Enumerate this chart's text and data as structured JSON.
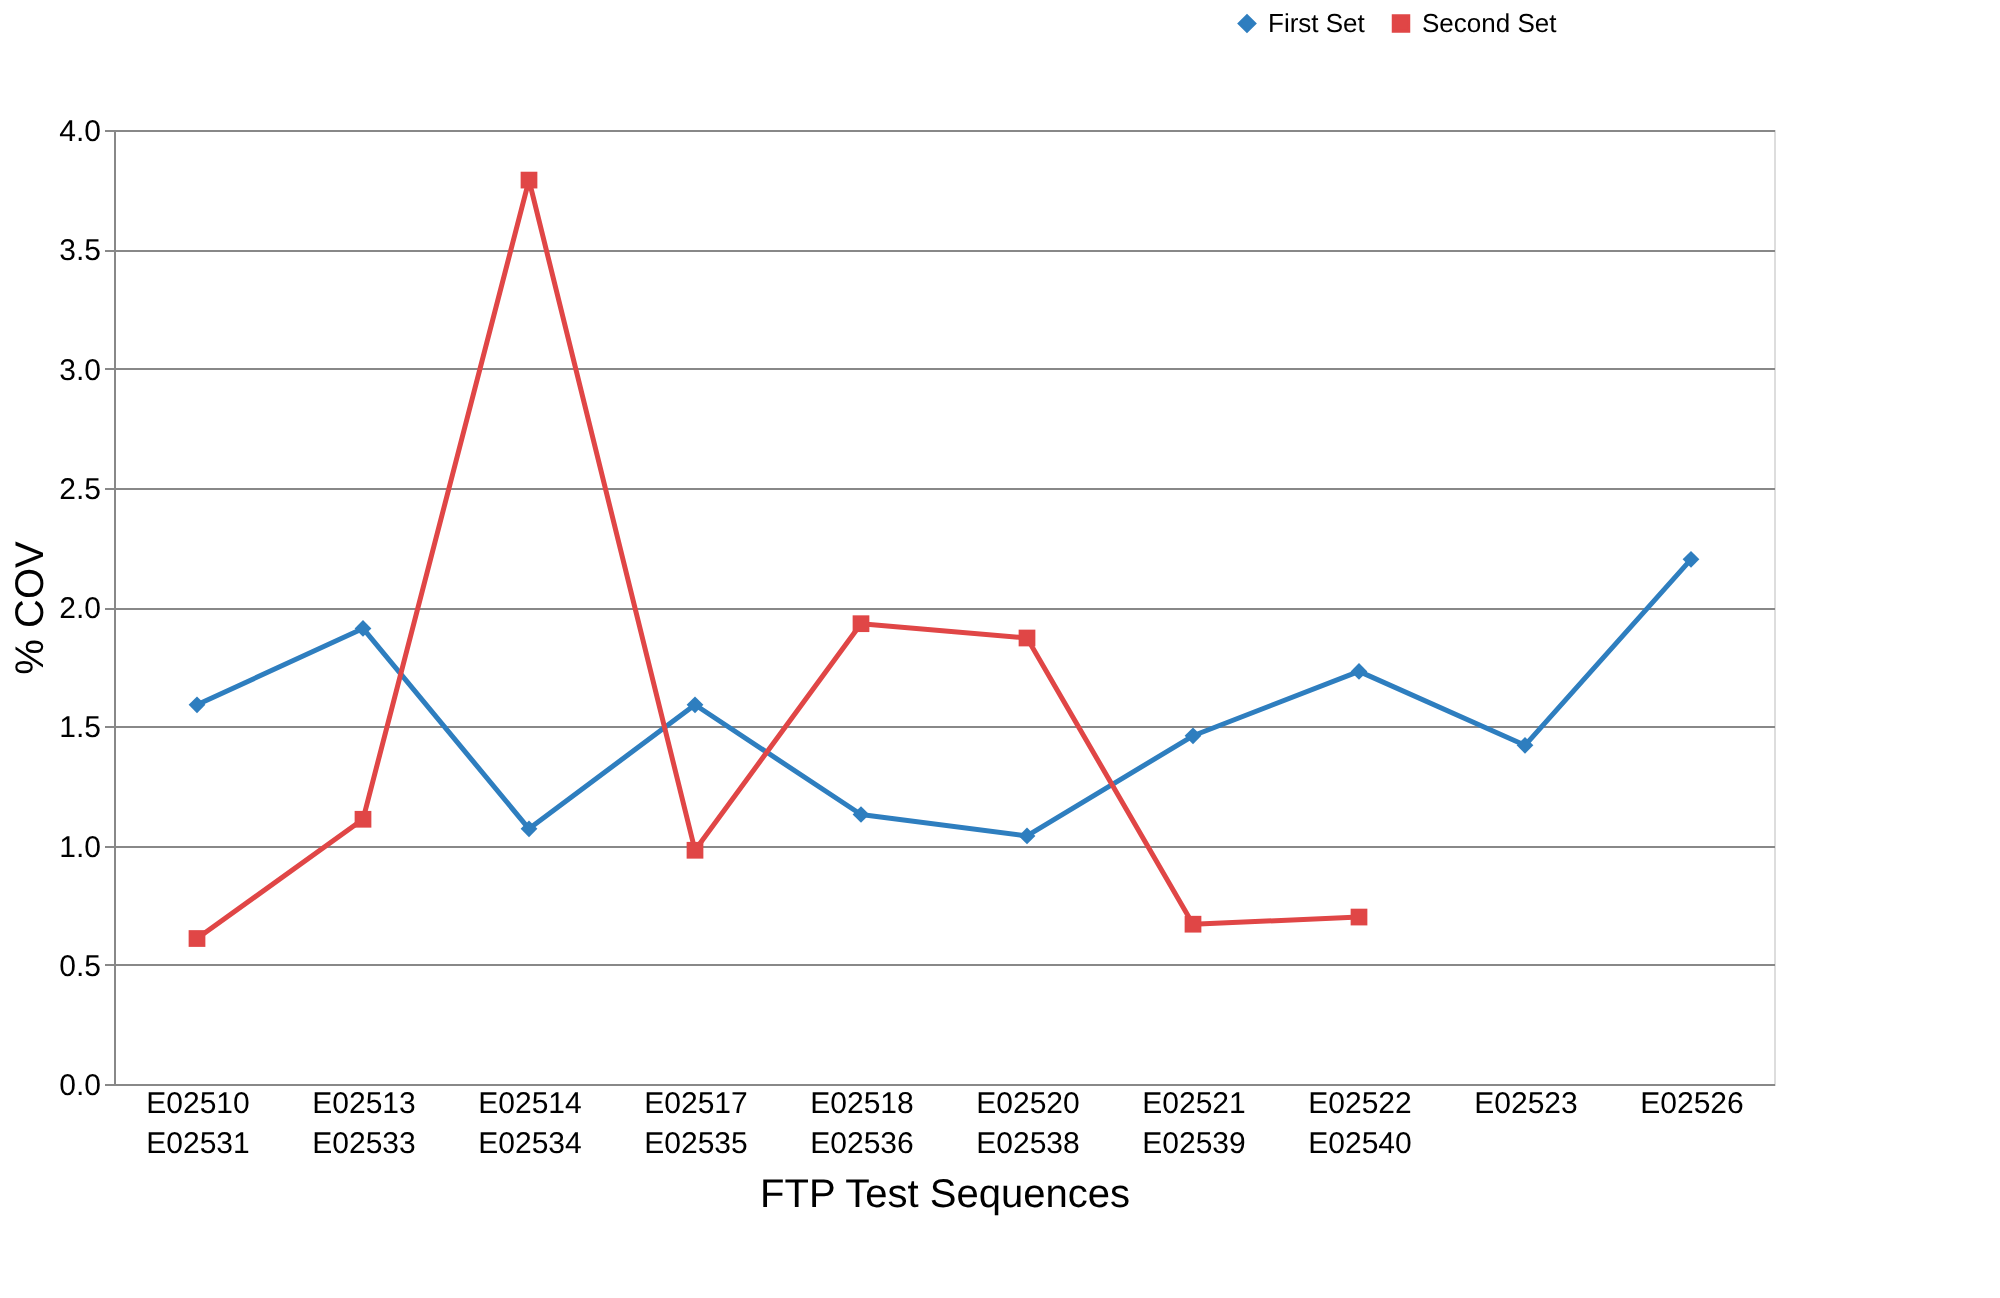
{
  "chart_data": {
    "type": "line",
    "xlabel": "FTP Test Sequences",
    "ylabel": "% COV",
    "categories": [
      "E02510\nE02531",
      "E02513\nE02533",
      "E02514\nE02534",
      "E02517\nE02535",
      "E02518\nE02536",
      "E02520\nE02538",
      "E02521\nE02539",
      "E02522\nE02540",
      "E02523",
      "E02526"
    ],
    "series": [
      {
        "name": "First Set",
        "color": "#2e7ebf",
        "marker": "diamond",
        "values": [
          1.59,
          1.91,
          1.07,
          1.59,
          1.13,
          1.04,
          1.46,
          1.73,
          1.42,
          2.2
        ]
      },
      {
        "name": "Second Set",
        "color": "#e04646",
        "marker": "square",
        "values": [
          0.61,
          1.11,
          3.79,
          0.98,
          1.93,
          1.87,
          0.67,
          0.7,
          null,
          null
        ]
      }
    ],
    "ylim": [
      0,
      4
    ],
    "yticks": [
      {
        "value": 0,
        "label": "0.0"
      },
      {
        "value": 0.5,
        "label": "0.5"
      },
      {
        "value": 1,
        "label": "1.0"
      },
      {
        "value": 1.5,
        "label": "1.5"
      },
      {
        "value": 2,
        "label": "2.0"
      },
      {
        "value": 2.5,
        "label": "2.5"
      },
      {
        "value": 3,
        "label": "3.0"
      },
      {
        "value": 3.5,
        "label": "3.5"
      },
      {
        "value": 4,
        "label": "4.0"
      }
    ],
    "grid": "y",
    "legend": "top right",
    "line_style": "solid"
  }
}
